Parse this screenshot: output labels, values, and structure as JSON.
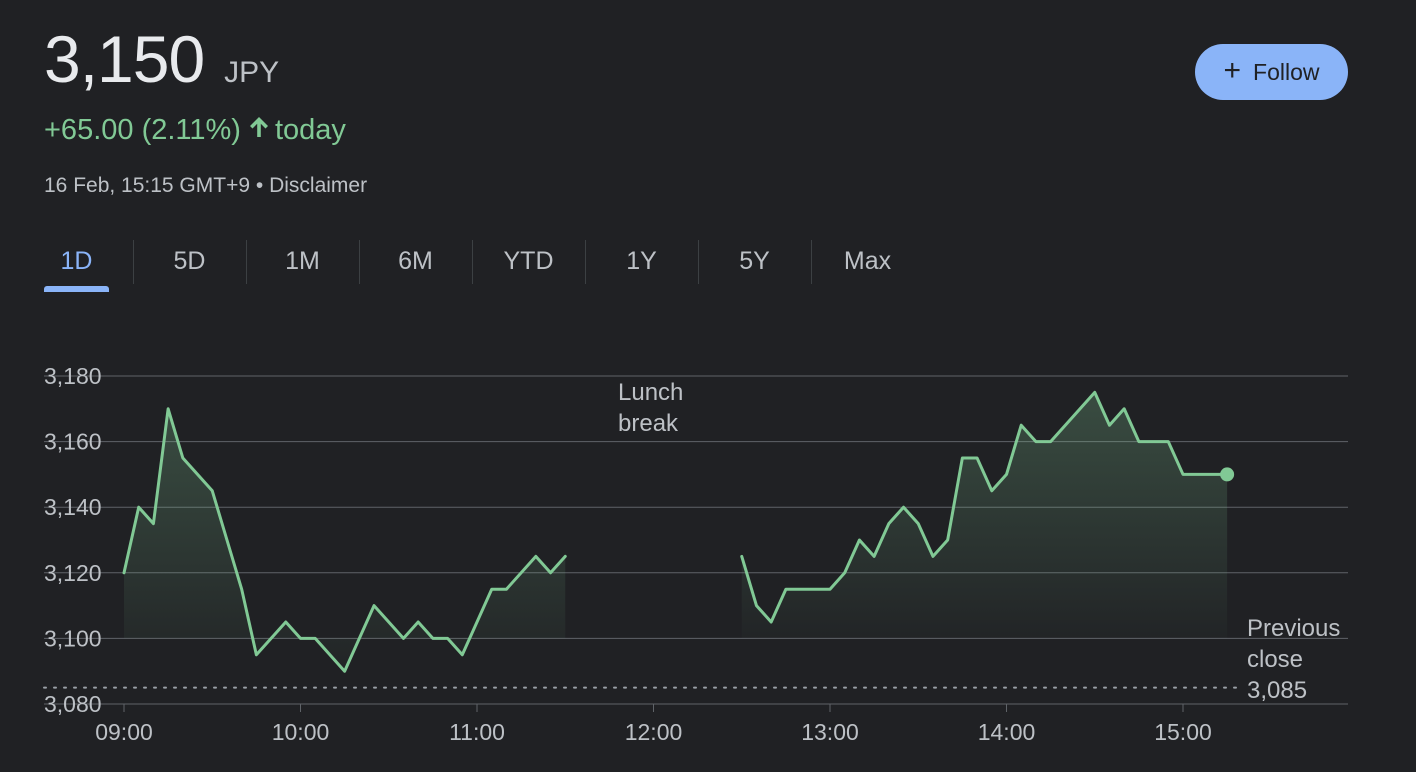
{
  "header": {
    "price": "3,150",
    "currency": "JPY",
    "change": "+65.00 (2.11%)",
    "change_suffix": "today",
    "timestamp": "16 Feb, 15:15 GMT+9",
    "separator": "•",
    "disclaimer": "Disclaimer",
    "follow_label": "Follow",
    "accent_color": "#8ab4f8",
    "positive_color": "#81c995"
  },
  "tabs": [
    "1D",
    "5D",
    "1M",
    "6M",
    "YTD",
    "1Y",
    "5Y",
    "Max"
  ],
  "active_tab": "1D",
  "chart_data": {
    "type": "area",
    "xlabel": "",
    "ylabel": "",
    "ylim": [
      3080,
      3180
    ],
    "y_ticks": [
      "3,180",
      "3,160",
      "3,140",
      "3,120",
      "3,100",
      "3,080"
    ],
    "x_ticks": [
      "09:00",
      "10:00",
      "11:00",
      "12:00",
      "13:00",
      "14:00",
      "15:00"
    ],
    "grid": true,
    "line_color": "#81c995",
    "segments": [
      {
        "points": [
          [
            "09:00",
            3120
          ],
          [
            "09:05",
            3140
          ],
          [
            "09:10",
            3135
          ],
          [
            "09:15",
            3170
          ],
          [
            "09:20",
            3155
          ],
          [
            "09:30",
            3145
          ],
          [
            "09:35",
            3130
          ],
          [
            "09:40",
            3115
          ],
          [
            "09:45",
            3095
          ],
          [
            "09:55",
            3105
          ],
          [
            "10:00",
            3100
          ],
          [
            "10:05",
            3100
          ],
          [
            "10:15",
            3090
          ],
          [
            "10:25",
            3110
          ],
          [
            "10:35",
            3100
          ],
          [
            "10:40",
            3105
          ],
          [
            "10:45",
            3100
          ],
          [
            "10:50",
            3100
          ],
          [
            "10:55",
            3095
          ],
          [
            "11:05",
            3115
          ],
          [
            "11:10",
            3115
          ],
          [
            "11:20",
            3125
          ],
          [
            "11:25",
            3120
          ],
          [
            "11:30",
            3125
          ]
        ]
      },
      {
        "points": [
          [
            "12:30",
            3125
          ],
          [
            "12:35",
            3110
          ],
          [
            "12:40",
            3105
          ],
          [
            "12:45",
            3115
          ],
          [
            "13:00",
            3115
          ],
          [
            "13:05",
            3120
          ],
          [
            "13:10",
            3130
          ],
          [
            "13:15",
            3125
          ],
          [
            "13:20",
            3135
          ],
          [
            "13:25",
            3140
          ],
          [
            "13:30",
            3135
          ],
          [
            "13:35",
            3125
          ],
          [
            "13:40",
            3130
          ],
          [
            "13:45",
            3155
          ],
          [
            "13:50",
            3155
          ],
          [
            "13:55",
            3145
          ],
          [
            "14:00",
            3150
          ],
          [
            "14:05",
            3165
          ],
          [
            "14:10",
            3160
          ],
          [
            "14:15",
            3160
          ],
          [
            "14:30",
            3175
          ],
          [
            "14:35",
            3165
          ],
          [
            "14:40",
            3170
          ],
          [
            "14:45",
            3160
          ],
          [
            "14:55",
            3160
          ],
          [
            "15:00",
            3150
          ],
          [
            "15:10",
            3150
          ],
          [
            "15:15",
            3150
          ]
        ]
      }
    ],
    "previous_close": 3085,
    "annotations": {
      "lunch_break": [
        "Lunch",
        "break"
      ],
      "previous_close": [
        "Previous",
        "close",
        "3,085"
      ]
    }
  }
}
